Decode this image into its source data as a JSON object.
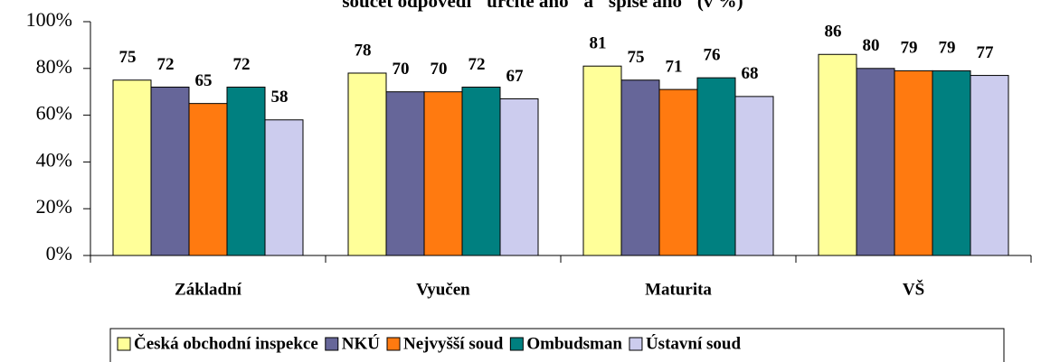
{
  "chart_data": {
    "type": "bar",
    "title": "součet odpovědí \"určitě ano\" a \"spíše ano\" (v %)",
    "categories": [
      "Základní",
      "Vyučen",
      "Maturita",
      "VŠ"
    ],
    "series": [
      {
        "name": "Česká obchodní inspekce",
        "color": "#ffff99",
        "values": [
          75,
          78,
          81,
          86
        ]
      },
      {
        "name": "NKÚ",
        "color": "#666699",
        "values": [
          72,
          70,
          75,
          80
        ]
      },
      {
        "name": "Nejvyšší soud",
        "color": "#ff7a10",
        "values": [
          65,
          70,
          71,
          79
        ]
      },
      {
        "name": "Ombudsman",
        "color": "#008080",
        "values": [
          72,
          72,
          76,
          79
        ]
      },
      {
        "name": "Ústavní soud",
        "color": "#ccccee",
        "values": [
          58,
          67,
          68,
          77
        ]
      }
    ],
    "ylim": [
      0,
      100
    ],
    "yticks": [
      {
        "value": 0,
        "label": "0%"
      },
      {
        "value": 20,
        "label": "20%"
      },
      {
        "value": 40,
        "label": "40%"
      },
      {
        "value": 60,
        "label": "60%"
      },
      {
        "value": 80,
        "label": "80%"
      },
      {
        "value": 100,
        "label": "100%"
      }
    ],
    "legend": "bottom"
  }
}
